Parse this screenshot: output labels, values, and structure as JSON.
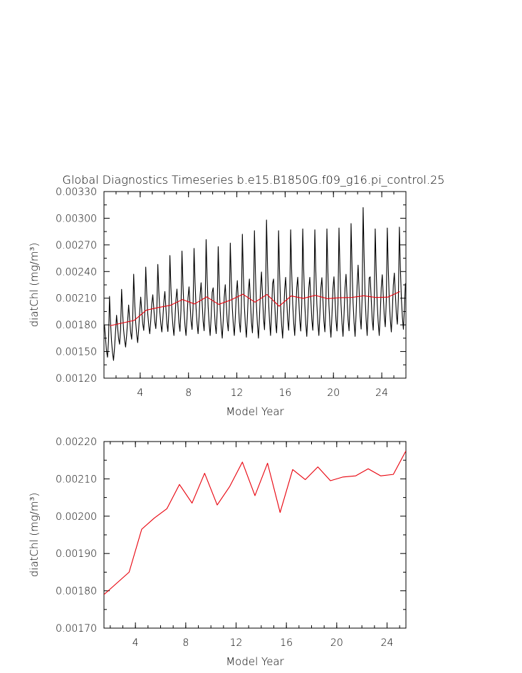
{
  "title": "Global Diagnostics Timeseries b.e15.B1850G.f09_g16.pi_control.25",
  "chart_data": [
    {
      "type": "line",
      "xlabel": "Model Year",
      "ylabel": "diatChl (mg/m³)",
      "xlim": [
        1,
        26
      ],
      "ylim": [
        0.0012,
        0.0033
      ],
      "xticks": [
        "4",
        "8",
        "12",
        "16",
        "20",
        "24"
      ],
      "xtick_values": [
        4,
        8,
        12,
        16,
        20,
        24
      ],
      "yticks": [
        "0.00120",
        "0.00150",
        "0.00180",
        "0.00210",
        "0.00240",
        "0.00270",
        "0.00300",
        "0.00330"
      ],
      "ytick_values": [
        0.0012,
        0.0015,
        0.0018,
        0.0021,
        0.0024,
        0.0027,
        0.003,
        0.0033
      ],
      "series": [
        {
          "color": "#000000",
          "kind": "monthly",
          "x_start": 1.042,
          "x_step": 0.08333,
          "annual_peaks": [
            0.00212,
            0.0022,
            0.00237,
            0.00245,
            0.00248,
            0.00258,
            0.00263,
            0.00266,
            0.00276,
            0.00268,
            0.00272,
            0.00282,
            0.00286,
            0.00298,
            0.00286,
            0.00287,
            0.00288,
            0.00287,
            0.00288,
            0.00289,
            0.00294,
            0.00312,
            0.00288,
            0.00289,
            0.0029
          ],
          "annual_troughs": [
            0.0014,
            0.00155,
            0.0016,
            0.0017,
            0.00172,
            0.00168,
            0.00168,
            0.0017,
            0.00168,
            0.00165,
            0.00168,
            0.00166,
            0.00165,
            0.00168,
            0.00165,
            0.00168,
            0.00167,
            0.00168,
            0.00166,
            0.00167,
            0.00167,
            0.00168,
            0.00168,
            0.00172,
            0.00175
          ]
        },
        {
          "color": "#e8000b",
          "kind": "annual",
          "x": [
            1.5,
            2.5,
            3.5,
            4.5,
            5.5,
            6.5,
            7.5,
            8.5,
            9.5,
            10.5,
            11.5,
            12.5,
            13.5,
            14.5,
            15.5,
            16.5,
            17.5,
            18.5,
            19.5,
            20.5,
            21.5,
            22.5,
            23.5,
            24.5,
            25.5
          ],
          "y": [
            0.00179,
            0.00182,
            0.00185,
            0.001965,
            0.001995,
            0.00202,
            0.002085,
            0.002035,
            0.002115,
            0.00203,
            0.00208,
            0.002145,
            0.002055,
            0.002142,
            0.00201,
            0.002125,
            0.002098,
            0.002132,
            0.002095,
            0.002105,
            0.002108,
            0.002127,
            0.002108,
            0.002112,
            0.002175
          ]
        }
      ]
    },
    {
      "type": "line",
      "xlabel": "Model Year",
      "ylabel": "diatChl (mg/m³)",
      "xlim": [
        1.5,
        25.5
      ],
      "ylim": [
        0.0017,
        0.0022
      ],
      "xticks": [
        "4",
        "8",
        "12",
        "16",
        "20",
        "24"
      ],
      "xtick_values": [
        4,
        8,
        12,
        16,
        20,
        24
      ],
      "yticks": [
        "0.00170",
        "0.00180",
        "0.00190",
        "0.00200",
        "0.00210",
        "0.00220"
      ],
      "ytick_values": [
        0.0017,
        0.0018,
        0.0019,
        0.002,
        0.0021,
        0.0022
      ],
      "series": [
        {
          "color": "#e8000b",
          "kind": "annual",
          "x": [
            1.5,
            2.5,
            3.5,
            4.5,
            5.5,
            6.5,
            7.5,
            8.5,
            9.5,
            10.5,
            11.5,
            12.5,
            13.5,
            14.5,
            15.5,
            16.5,
            17.5,
            18.5,
            19.5,
            20.5,
            21.5,
            22.5,
            23.5,
            24.5,
            25.5
          ],
          "y": [
            0.00179,
            0.00182,
            0.00185,
            0.001965,
            0.001995,
            0.00202,
            0.002085,
            0.002035,
            0.002115,
            0.00203,
            0.00208,
            0.002145,
            0.002055,
            0.002142,
            0.00201,
            0.002125,
            0.002098,
            0.002132,
            0.002095,
            0.002105,
            0.002108,
            0.002127,
            0.002108,
            0.002112,
            0.002175
          ]
        }
      ]
    }
  ]
}
